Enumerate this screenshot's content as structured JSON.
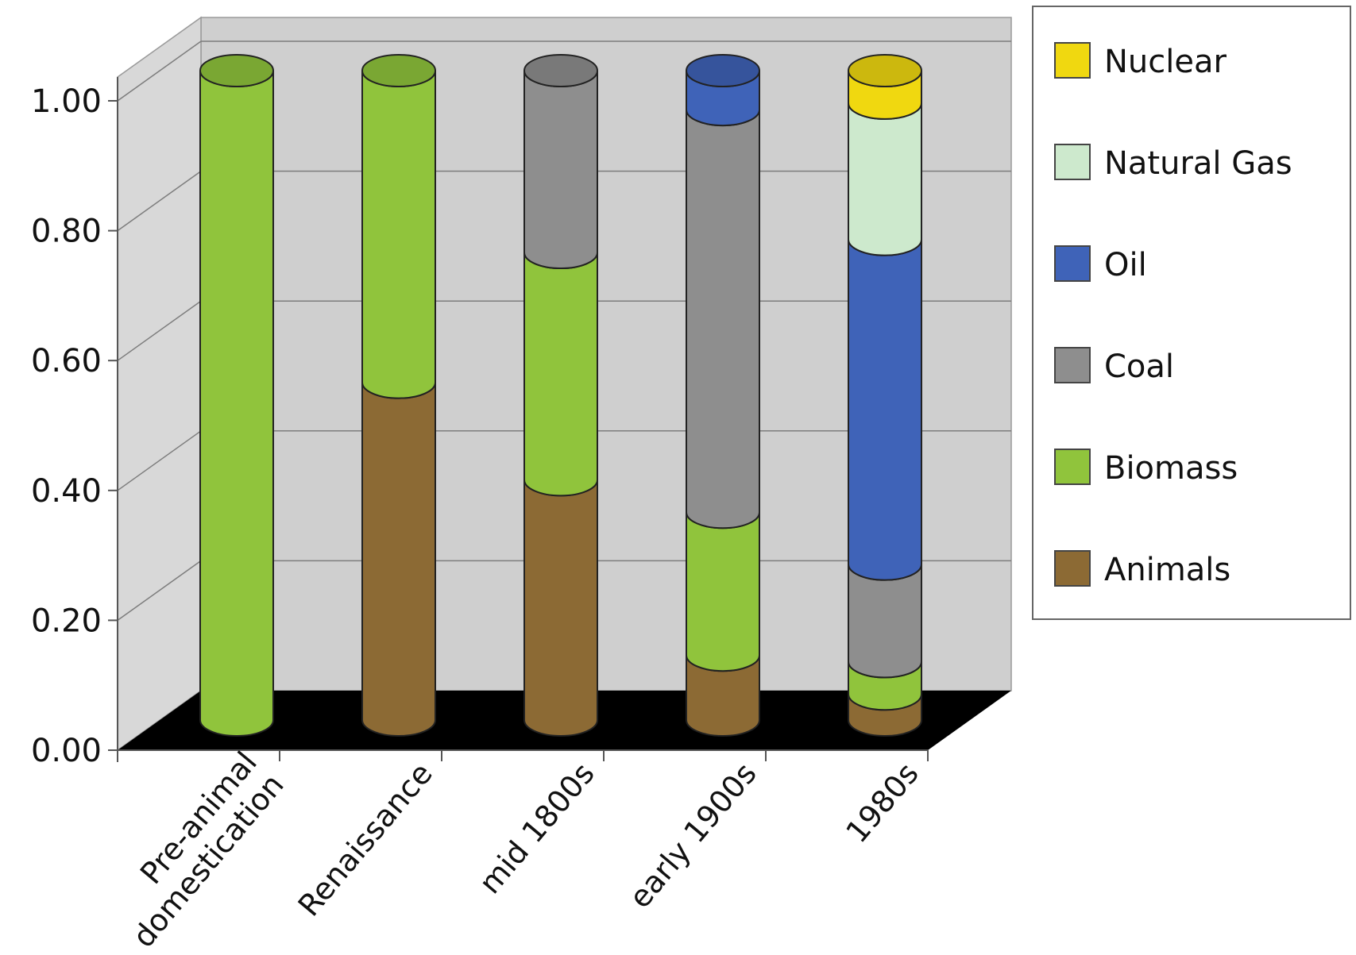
{
  "chart_data": {
    "type": "bar",
    "stacked": true,
    "three_d": true,
    "categories": [
      "Pre-animal domestication",
      "Renaissance",
      "mid 1800s",
      "early 1900s",
      "1980s"
    ],
    "category_label_lines": [
      [
        "Pre-animal",
        "domestication"
      ],
      [
        "Renaissance"
      ],
      [
        "mid 1800s"
      ],
      [
        "early 1900s"
      ],
      [
        "1980s"
      ]
    ],
    "series": [
      {
        "name": "Animals",
        "color": "#8c6a34",
        "values": [
          0.0,
          0.52,
          0.37,
          0.1,
          0.04
        ]
      },
      {
        "name": "Biomass",
        "color": "#90c43c",
        "values": [
          1.0,
          0.48,
          0.35,
          0.22,
          0.05
        ]
      },
      {
        "name": "Coal",
        "color": "#8e8e8e",
        "values": [
          0.0,
          0.0,
          0.28,
          0.62,
          0.15
        ]
      },
      {
        "name": "Oil",
        "color": "#3f63b8",
        "values": [
          0.0,
          0.0,
          0.0,
          0.06,
          0.5
        ]
      },
      {
        "name": "Natural Gas",
        "color": "#cde9cd",
        "values": [
          0.0,
          0.0,
          0.0,
          0.0,
          0.21
        ]
      },
      {
        "name": "Nuclear",
        "color": "#f0d810",
        "values": [
          0.0,
          0.0,
          0.0,
          0.0,
          0.05
        ]
      }
    ],
    "yticks": [
      "0.00",
      "0.20",
      "0.40",
      "0.60",
      "0.80",
      "1.00"
    ],
    "ylim": [
      0,
      1
    ],
    "grid": true,
    "legend_position": "top-right",
    "legend_order": [
      "Nuclear",
      "Natural Gas",
      "Oil",
      "Coal",
      "Biomass",
      "Animals"
    ],
    "title": "",
    "xlabel": "",
    "ylabel": ""
  }
}
